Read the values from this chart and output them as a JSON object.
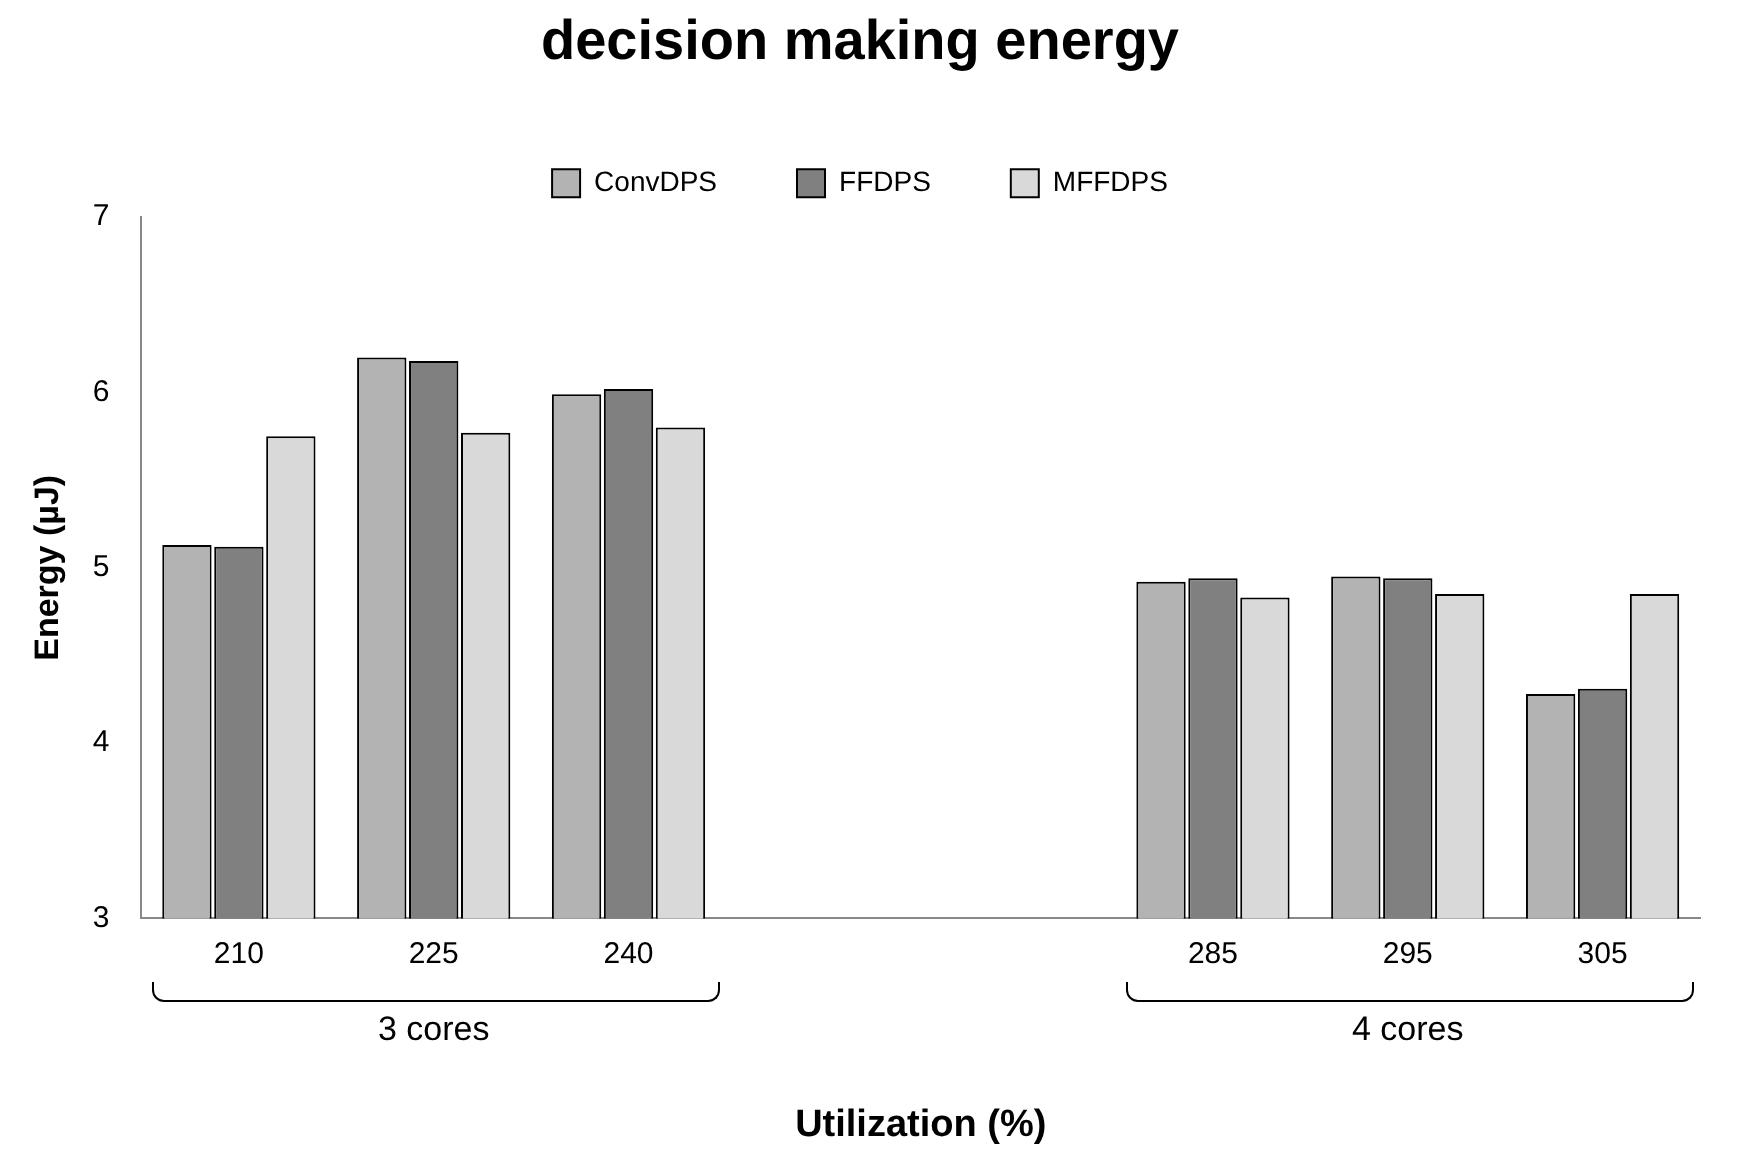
{
  "chart_data": {
    "type": "bar",
    "title": "decision making energy",
    "xlabel": "Utilization (%)",
    "ylabel": "Energy (µJ)",
    "categories": [
      "210",
      "225",
      "240",
      null,
      null,
      "285",
      "295",
      "305"
    ],
    "series": [
      {
        "name": "ConvDPS",
        "color": "#b3b3b3",
        "values": [
          5.13,
          6.2,
          5.99,
          null,
          null,
          4.92,
          4.95,
          4.28
        ]
      },
      {
        "name": "FFDPS",
        "color": "#808080",
        "values": [
          5.12,
          6.18,
          6.02,
          null,
          null,
          4.94,
          4.94,
          4.31
        ]
      },
      {
        "name": "MFFDPS",
        "color": "#d9d9d9",
        "values": [
          5.75,
          5.77,
          5.8,
          null,
          null,
          4.83,
          4.85,
          4.85
        ]
      }
    ],
    "ylim": [
      3,
      7
    ],
    "yticks": [
      3,
      4,
      5,
      6,
      7
    ],
    "grid": false,
    "legend": "top",
    "annotations": [
      "3 cores",
      "4 cores"
    ]
  }
}
